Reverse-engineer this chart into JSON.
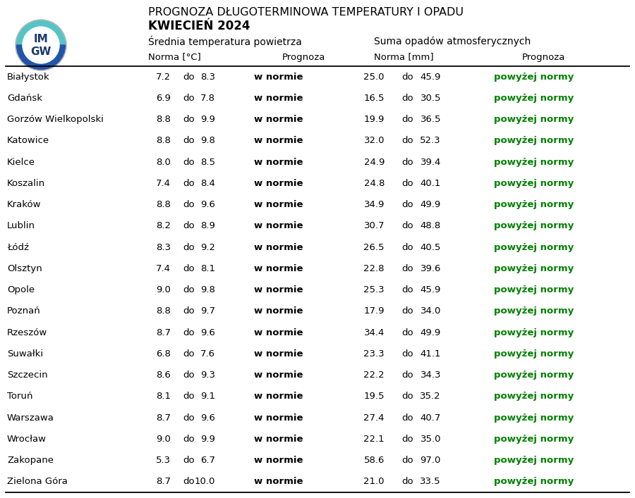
{
  "title_line1": "PROGNOZA DŁUGOTERMINOWA TEMPERATURY I OPADU",
  "title_line2": "KWIECIEŃ 2024",
  "header_temp": "Średnia temperatura powietrza",
  "header_precip": "Suma opadów atmosferycznych",
  "col_norma_c": "Norma [°C]",
  "col_prognoza_t": "Prognoza",
  "col_norma_mm": "Norma [mm]",
  "col_prognoza_p": "Prognoza",
  "cities": [
    "Białystok",
    "Gdańsk",
    "Gorzów Wielkopolski",
    "Katowice",
    "Kielce",
    "Koszalin",
    "Kraków",
    "Lublin",
    "Łódź",
    "Olsztyn",
    "Opole",
    "Poznań",
    "Rzeszów",
    "Suwałki",
    "Szczecin",
    "Toruń",
    "Warszawa",
    "Wrocław",
    "Zakopane",
    "Zielona Góra"
  ],
  "temp_low": [
    7.2,
    6.9,
    8.8,
    8.8,
    8.0,
    7.4,
    8.8,
    8.2,
    8.3,
    7.4,
    9.0,
    8.8,
    8.7,
    6.8,
    8.6,
    8.1,
    8.7,
    9.0,
    5.3,
    8.7
  ],
  "temp_high": [
    8.3,
    7.8,
    9.9,
    9.8,
    8.5,
    8.4,
    9.6,
    8.9,
    9.2,
    8.1,
    9.8,
    9.7,
    9.6,
    7.6,
    9.3,
    9.1,
    9.6,
    9.9,
    6.7,
    10.0
  ],
  "temp_prog": [
    "w normie",
    "w normie",
    "w normie",
    "w normie",
    "w normie",
    "w normie",
    "w normie",
    "w normie",
    "w normie",
    "w normie",
    "w normie",
    "w normie",
    "w normie",
    "w normie",
    "w normie",
    "w normie",
    "w normie",
    "w normie",
    "w normie",
    "w normie"
  ],
  "precip_low": [
    25.0,
    16.5,
    19.9,
    32.0,
    24.9,
    24.8,
    34.9,
    30.7,
    26.5,
    22.8,
    25.3,
    17.9,
    34.4,
    23.3,
    22.2,
    19.5,
    27.4,
    22.1,
    58.6,
    21.0
  ],
  "precip_high": [
    45.9,
    30.5,
    36.5,
    52.3,
    39.4,
    40.1,
    49.9,
    48.8,
    40.5,
    39.6,
    45.9,
    34.0,
    49.9,
    41.1,
    34.3,
    35.2,
    40.7,
    35.0,
    97.0,
    33.5
  ],
  "precip_prog": [
    "powyżej normy",
    "powyżej normy",
    "powyżej normy",
    "powyżej normy",
    "powyżej normy",
    "powyżej normy",
    "powyżej normy",
    "powyżej normy",
    "powyżej normy",
    "powyżej normy",
    "powyżej normy",
    "powyżej normy",
    "powyżej normy",
    "powyżej normy",
    "powyżej normy",
    "powyżej normy",
    "powyżej normy",
    "powyżej normy",
    "powyżej normy",
    "powyżej normy"
  ],
  "temp_prog_color": "#000000",
  "precip_prog_color": "#008000",
  "bg_color": "#ffffff",
  "text_color": "#000000"
}
